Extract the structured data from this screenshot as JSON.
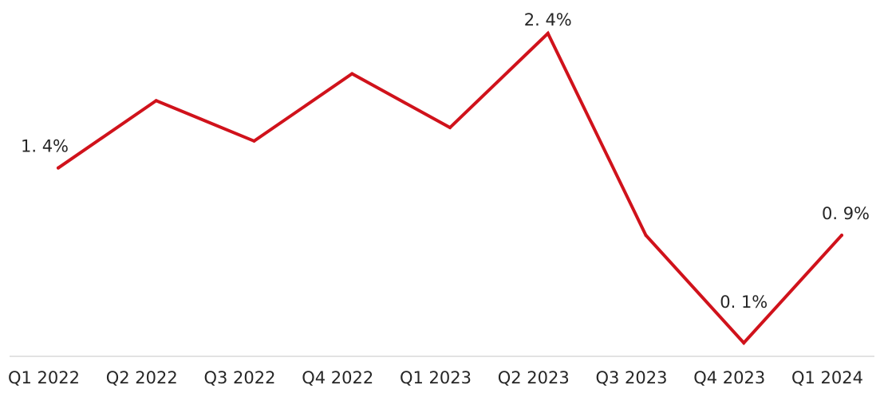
{
  "chart_data": {
    "type": "line",
    "title": "",
    "xlabel": "",
    "ylabel": "",
    "categories": [
      "Q1 2022",
      "Q2 2022",
      "Q3 2022",
      "Q4 2022",
      "Q1 2023",
      "Q2 2023",
      "Q3 2023",
      "Q4 2023",
      "Q1 2024"
    ],
    "series": [
      {
        "values": [
          1.4,
          1.9,
          1.6,
          2.1,
          1.7,
          2.4,
          0.9,
          0.1,
          0.9
        ],
        "color": "#d0121b"
      }
    ],
    "data_labels": [
      {
        "index": 0,
        "text": "1. 4%"
      },
      {
        "index": 5,
        "text": "2. 4%"
      },
      {
        "index": 7,
        "text": "0. 1%"
      },
      {
        "index": 8,
        "text": "0. 9%"
      }
    ],
    "ylim": [
      0.0,
      2.5
    ],
    "grid": false,
    "y_axis_visible": false,
    "axis_color": "#d9d9d9",
    "text_color": "#262626"
  }
}
